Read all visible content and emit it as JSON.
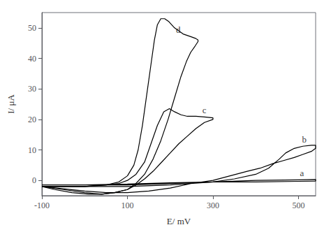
{
  "chart_data": {
    "type": "line",
    "xlabel": "E/ mV",
    "ylabel": "I/ μA",
    "xlim": [
      -100,
      540
    ],
    "ylim": [
      -5,
      55
    ],
    "xticks": [
      -100,
      100,
      300,
      500
    ],
    "yticks": [
      0,
      10,
      20,
      30,
      40,
      50
    ],
    "grid": false,
    "color": "#000000",
    "series": [
      {
        "x": [
          -100,
          0,
          100,
          200,
          300,
          400,
          500,
          540,
          540,
          500,
          400,
          300,
          200,
          100,
          0,
          -100
        ],
        "values": [
          -1.5,
          -1.5,
          -1.5,
          -1.0,
          -0.5,
          0.0,
          0.2,
          0.3,
          -0.2,
          -0.3,
          -0.5,
          -0.5,
          -0.8,
          -1.2,
          -1.5,
          -1.5
        ]
      },
      {
        "x": [
          -100,
          0,
          100,
          200,
          300,
          350,
          400,
          430,
          455,
          470,
          490,
          510,
          530,
          540,
          540,
          530,
          510,
          490,
          465,
          440,
          410,
          380,
          340,
          300,
          250,
          200,
          150,
          100,
          50,
          0,
          -100
        ],
        "values": [
          -2.0,
          -2.0,
          -2.0,
          -1.5,
          -0.5,
          0.5,
          2.0,
          4.0,
          7.0,
          9.0,
          10.5,
          11.2,
          11.5,
          11.5,
          10.5,
          9.5,
          8.5,
          7.5,
          6.5,
          5.5,
          4.0,
          3.0,
          1.5,
          0.0,
          -1.0,
          -2.5,
          -3.5,
          -4.0,
          -4.0,
          -3.5,
          -2.0
        ]
      },
      {
        "x": [
          -100,
          0,
          50,
          80,
          100,
          120,
          140,
          155,
          170,
          185,
          198,
          210,
          225,
          240,
          260,
          280,
          300,
          300,
          280,
          260,
          240,
          220,
          200,
          180,
          160,
          140,
          120,
          100,
          70,
          40,
          10,
          -30,
          -70,
          -100
        ],
        "values": [
          -2.0,
          -2.0,
          -1.5,
          -1.0,
          0.0,
          2.0,
          6.0,
          12.0,
          18.0,
          22.5,
          23.5,
          22.5,
          21.5,
          21.0,
          21.0,
          20.8,
          20.5,
          20.0,
          19.0,
          17.0,
          14.5,
          12.0,
          9.0,
          6.0,
          3.0,
          0.5,
          -1.5,
          -3.0,
          -4.0,
          -4.5,
          -4.5,
          -4.0,
          -3.0,
          -2.0
        ]
      },
      {
        "x": [
          -100,
          0,
          50,
          80,
          100,
          115,
          125,
          135,
          145,
          155,
          163,
          170,
          178,
          187,
          197,
          210,
          230,
          250,
          260,
          265,
          265,
          258,
          248,
          238,
          225,
          210,
          195,
          178,
          160,
          140,
          120,
          100,
          70,
          40,
          0,
          -50,
          -100
        ],
        "values": [
          -2.0,
          -2.0,
          -1.5,
          -0.5,
          1.5,
          5.0,
          10.0,
          18.0,
          28.0,
          38.0,
          46.0,
          51.0,
          53.0,
          53.0,
          52.0,
          50.0,
          48.0,
          47.0,
          46.5,
          46.0,
          45.5,
          44.0,
          42.0,
          39.0,
          34.0,
          27.0,
          20.0,
          13.0,
          7.0,
          2.0,
          -1.0,
          -3.0,
          -4.0,
          -4.5,
          -4.0,
          -3.0,
          -2.0
        ]
      }
    ],
    "annotations": [
      {
        "text": "a",
        "x": 500,
        "y": 1.0
      },
      {
        "text": "b",
        "x": 505,
        "y": 12.0
      },
      {
        "text": "c",
        "x": 272,
        "y": 21.5
      },
      {
        "text": "d",
        "x": 210,
        "y": 48.0
      }
    ]
  }
}
